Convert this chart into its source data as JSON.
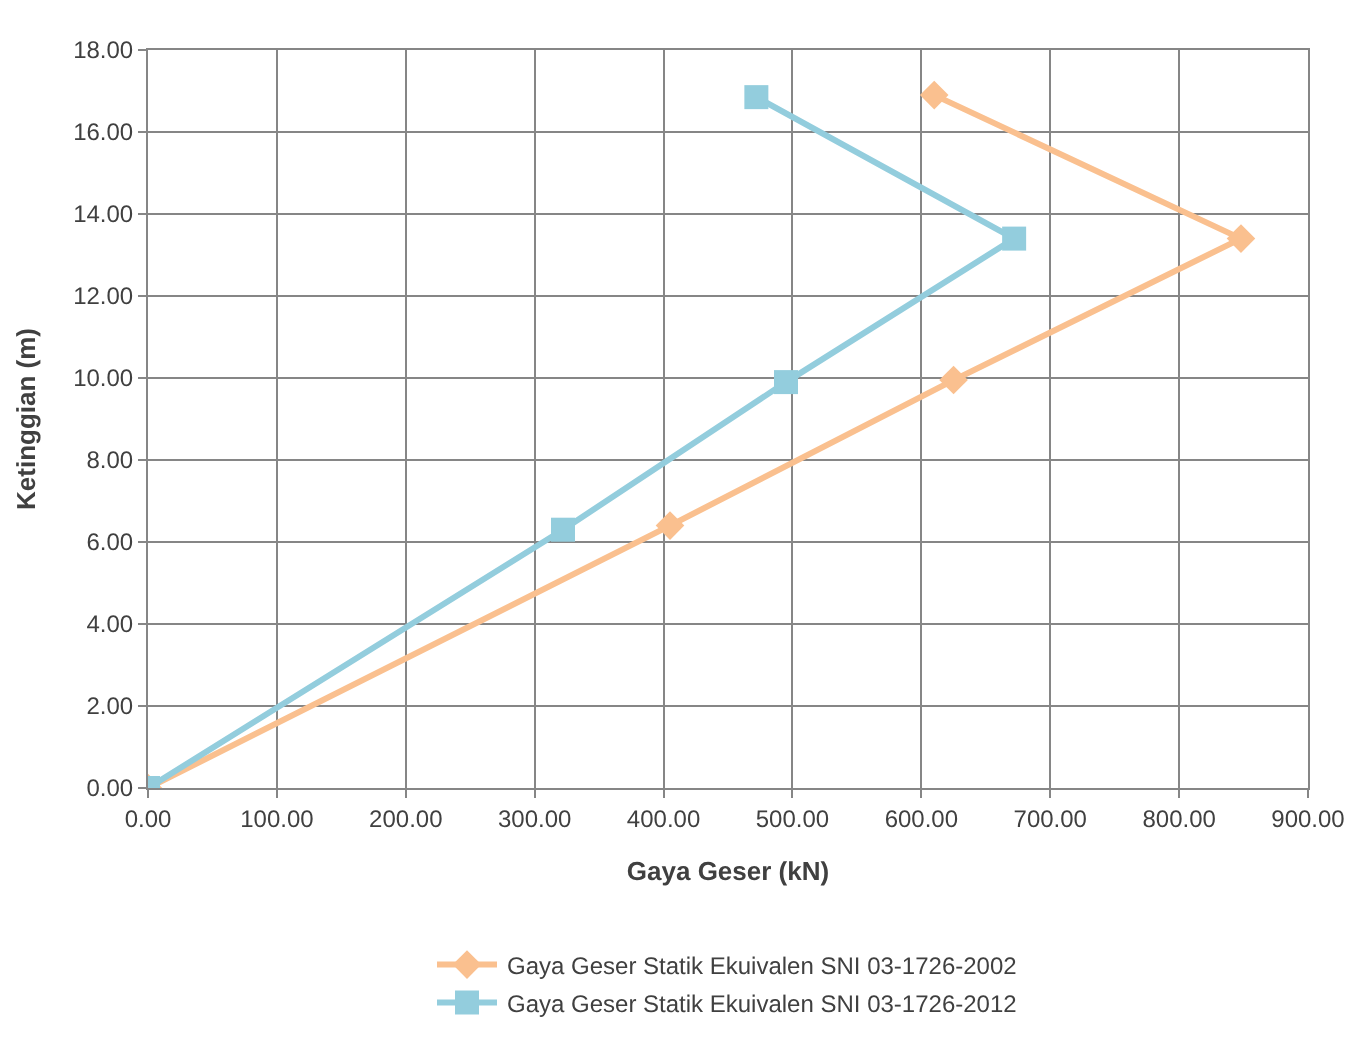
{
  "chart_data": {
    "type": "line",
    "xlabel": "Gaya Geser (kN)",
    "ylabel": "Ketinggian (m)",
    "series": [
      {
        "name": "Gaya Geser Statik Ekuivalen SNI 03-1726-2002",
        "color": "#fac08f",
        "marker": "diamond",
        "x": [
          0,
          405,
          625,
          848,
          610
        ],
        "values": [
          0,
          6.4,
          9.95,
          13.4,
          16.9
        ]
      },
      {
        "name": "Gaya Geser Statik Ekuivalen SNI 03-1726-2012",
        "color": "#93cddd",
        "marker": "square",
        "x": [
          0,
          322,
          495,
          672,
          472
        ],
        "values": [
          0,
          6.3,
          9.9,
          13.4,
          16.85
        ]
      }
    ],
    "xlim": [
      0,
      900
    ],
    "xticks": [
      {
        "value": 0,
        "label": "0.00"
      },
      {
        "value": 100,
        "label": "100.00"
      },
      {
        "value": 200,
        "label": "200.00"
      },
      {
        "value": 300,
        "label": "300.00"
      },
      {
        "value": 400,
        "label": "400.00"
      },
      {
        "value": 500,
        "label": "500.00"
      },
      {
        "value": 600,
        "label": "600.00"
      },
      {
        "value": 700,
        "label": "700.00"
      },
      {
        "value": 800,
        "label": "800.00"
      },
      {
        "value": 900,
        "label": "900.00"
      }
    ],
    "ylim": [
      0,
      18
    ],
    "yticks": [
      {
        "value": 0,
        "label": "0.00"
      },
      {
        "value": 2,
        "label": "2.00"
      },
      {
        "value": 4,
        "label": "4.00"
      },
      {
        "value": 6,
        "label": "6.00"
      },
      {
        "value": 8,
        "label": "8.00"
      },
      {
        "value": 10,
        "label": "10.00"
      },
      {
        "value": 12,
        "label": "12.00"
      },
      {
        "value": 14,
        "label": "14.00"
      },
      {
        "value": 16,
        "label": "16.00"
      },
      {
        "value": 18,
        "label": "18.00"
      }
    ],
    "grid": true,
    "legend": "bottom",
    "line_style": "solid"
  }
}
